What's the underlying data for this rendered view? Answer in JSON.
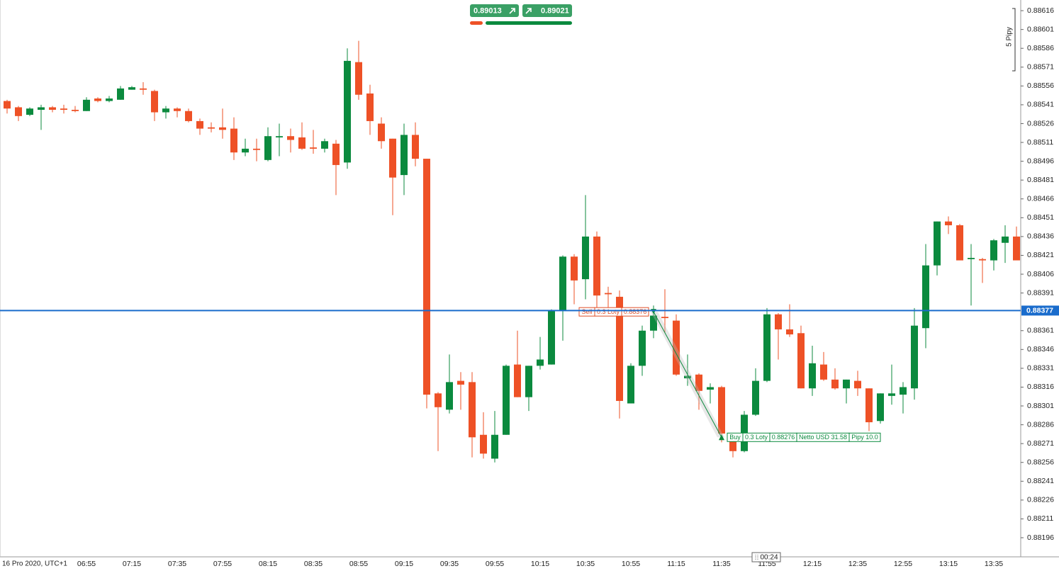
{
  "chart_data": {
    "type": "candlestick",
    "categories": [
      null,
      null,
      null,
      null,
      null,
      null,
      null,
      "06:55",
      null,
      null,
      null,
      "07:15",
      null,
      null,
      null,
      "07:35",
      null,
      null,
      null,
      "07:55",
      null,
      null,
      null,
      "08:15",
      null,
      null,
      null,
      "08:35",
      null,
      null,
      null,
      "08:55",
      null,
      null,
      null,
      "09:15",
      null,
      null,
      null,
      "09:35",
      null,
      null,
      null,
      "09:55",
      null,
      null,
      null,
      "10:15",
      null,
      null,
      null,
      "10:35",
      null,
      null,
      null,
      "10:55",
      null,
      null,
      null,
      "11:15",
      null,
      null,
      null,
      "11:35",
      null,
      null,
      null,
      "11:55",
      null,
      null,
      null,
      "12:15",
      null,
      null,
      null,
      "12:35",
      null,
      null,
      null,
      "12:55",
      null,
      null,
      null,
      "13:15",
      null,
      null,
      null,
      "13:35",
      null,
      null
    ],
    "open": [
      0.88544,
      0.88539,
      0.88533,
      0.88537,
      0.88539,
      0.88538,
      0.88537,
      0.88536,
      0.88546,
      0.88544,
      0.88545,
      0.88553,
      0.88554,
      0.88552,
      0.88535,
      0.88538,
      0.88536,
      0.88528,
      0.88523,
      0.88523,
      0.88522,
      0.88503,
      0.88506,
      0.88497,
      0.88515,
      0.88516,
      0.88515,
      0.88507,
      0.88506,
      0.8851,
      0.88495,
      0.88575,
      0.8855,
      0.88526,
      0.88514,
      0.88485,
      0.88517,
      0.88498,
      0.88311,
      0.88298,
      0.88321,
      0.8832,
      0.88278,
      0.88259,
      0.88278,
      0.88334,
      0.88308,
      0.88333,
      0.88334,
      0.88377,
      0.8842,
      0.88402,
      0.88436,
      0.88391,
      0.88388,
      0.88303,
      0.88333,
      0.88361,
      0.88372,
      0.88369,
      0.88323,
      0.88326,
      0.88314,
      0.88316,
      0.88273,
      0.88265,
      0.88294,
      0.88321,
      0.88374,
      0.88362,
      0.88359,
      0.88315,
      0.88334,
      0.88322,
      0.88315,
      0.88321,
      0.88315,
      0.88289,
      0.88309,
      0.8831,
      0.88315,
      0.88363,
      0.88413,
      0.88448,
      0.88445,
      0.88418,
      0.88418,
      0.88417,
      0.88431,
      0.88436
    ],
    "high": [
      0.88545,
      0.8854,
      0.88539,
      0.88541,
      0.8854,
      0.88541,
      0.8854,
      0.88547,
      0.88547,
      0.88548,
      0.88556,
      0.88556,
      0.88559,
      0.88553,
      0.8854,
      0.88539,
      0.88538,
      0.8853,
      0.88527,
      0.88538,
      0.88531,
      0.88514,
      0.88514,
      0.88523,
      0.88526,
      0.88522,
      0.88527,
      0.88521,
      0.88514,
      0.88513,
      0.88586,
      0.88592,
      0.88557,
      0.88531,
      0.88514,
      0.88526,
      0.88527,
      0.88498,
      0.88312,
      0.88342,
      0.88328,
      0.88328,
      0.88296,
      0.88297,
      0.88334,
      0.88361,
      0.88333,
      0.88356,
      0.88378,
      0.88421,
      0.88422,
      0.88469,
      0.8844,
      0.88396,
      0.88393,
      0.88335,
      0.88365,
      0.88381,
      0.88394,
      0.88374,
      0.88342,
      0.88327,
      0.88319,
      0.88317,
      0.88278,
      0.88297,
      0.88331,
      0.88379,
      0.88375,
      0.88382,
      0.88365,
      0.88349,
      0.88344,
      0.88331,
      0.88322,
      0.88329,
      0.88315,
      0.88311,
      0.88334,
      0.8832,
      0.88379,
      0.8843,
      0.88448,
      0.88452,
      0.88446,
      0.8843,
      0.88419,
      0.88434,
      0.88445,
      0.88444
    ],
    "low": [
      0.88534,
      0.88528,
      0.88532,
      0.88521,
      0.88535,
      0.88534,
      0.88535,
      0.88536,
      0.88543,
      0.88543,
      0.88545,
      0.88553,
      0.88549,
      0.88528,
      0.8853,
      0.88531,
      0.88527,
      0.88517,
      0.88519,
      0.88514,
      0.88497,
      0.885,
      0.88496,
      0.88496,
      0.885,
      0.88503,
      0.88505,
      0.88502,
      0.88503,
      0.88469,
      0.8849,
      0.88545,
      0.88517,
      0.88506,
      0.88453,
      0.88469,
      0.88492,
      0.88299,
      0.88265,
      0.88295,
      0.88298,
      0.8826,
      0.88259,
      0.88256,
      0.88278,
      0.88308,
      0.88297,
      0.8833,
      0.88334,
      0.88353,
      0.88382,
      0.88386,
      0.88373,
      0.88373,
      0.88291,
      0.88303,
      0.88325,
      0.88355,
      0.88359,
      0.88325,
      0.88317,
      0.88298,
      0.88303,
      0.88272,
      0.8826,
      0.88264,
      0.88293,
      0.8832,
      0.88338,
      0.88356,
      0.88315,
      0.88309,
      0.88321,
      0.88314,
      0.88303,
      0.88309,
      0.88281,
      0.88287,
      0.88302,
      0.88295,
      0.88306,
      0.88347,
      0.88405,
      0.88438,
      0.88417,
      0.88381,
      0.88399,
      0.88409,
      0.88415,
      0.88417
    ],
    "close": [
      0.88538,
      0.88532,
      0.88538,
      0.88539,
      0.88537,
      0.88537,
      0.88536,
      0.88545,
      0.88544,
      0.88546,
      0.88554,
      0.88555,
      0.88553,
      0.88535,
      0.88538,
      0.88536,
      0.88528,
      0.88522,
      0.88522,
      0.88521,
      0.88503,
      0.88506,
      0.88505,
      0.88516,
      0.88516,
      0.88513,
      0.88506,
      0.88506,
      0.88512,
      0.88493,
      0.88576,
      0.88549,
      0.88528,
      0.88512,
      0.88483,
      0.88517,
      0.88498,
      0.8831,
      0.883,
      0.8832,
      0.88318,
      0.88276,
      0.88263,
      0.88278,
      0.88333,
      0.88308,
      0.88333,
      0.88338,
      0.88377,
      0.8842,
      0.88401,
      0.88436,
      0.88389,
      0.8839,
      0.88305,
      0.88333,
      0.88361,
      0.88373,
      0.88371,
      0.88326,
      0.88325,
      0.88313,
      0.88316,
      0.88279,
      0.88265,
      0.88294,
      0.88321,
      0.88374,
      0.88362,
      0.88358,
      0.88315,
      0.88335,
      0.88322,
      0.88315,
      0.88322,
      0.88315,
      0.88288,
      0.88311,
      0.88311,
      0.88316,
      0.88365,
      0.88413,
      0.88448,
      0.88445,
      0.88417,
      0.88419,
      0.88417,
      0.88433,
      0.88436,
      0.88417
    ],
    "up_color": "#0b8a3e",
    "down_color": "#ee5126",
    "ylim": [
      0.881785,
      0.886245
    ],
    "yticks": [
      0.88616,
      0.88601,
      0.88586,
      0.88571,
      0.88556,
      0.88541,
      0.88526,
      0.88511,
      0.88496,
      0.88481,
      0.88466,
      0.88451,
      0.88436,
      0.88421,
      0.88406,
      0.88391,
      0.88361,
      0.88346,
      0.88331,
      0.88316,
      0.88301,
      0.88286,
      0.88271,
      0.88256,
      0.88241,
      0.88226,
      0.88211,
      0.88196
    ],
    "current_price": 0.88377,
    "current_price_color": "#1a6ccc",
    "trades": [
      {
        "side": "Sell",
        "lots": "0.3 Loty",
        "price": 0.88376,
        "color": "#e0502a"
      },
      {
        "side": "Buy",
        "lots": "0.3 Loty",
        "price": 0.88276,
        "net": "Netto USD 31.58",
        "pips": "Pipy 10.0",
        "color": "#0b8a3e"
      }
    ],
    "sell_quote": 0.89013,
    "buy_quote": 0.89021,
    "scale_label": "5 Pipy",
    "footer": "16 Pro 2020, UTC+1",
    "countdown": "00:24"
  }
}
